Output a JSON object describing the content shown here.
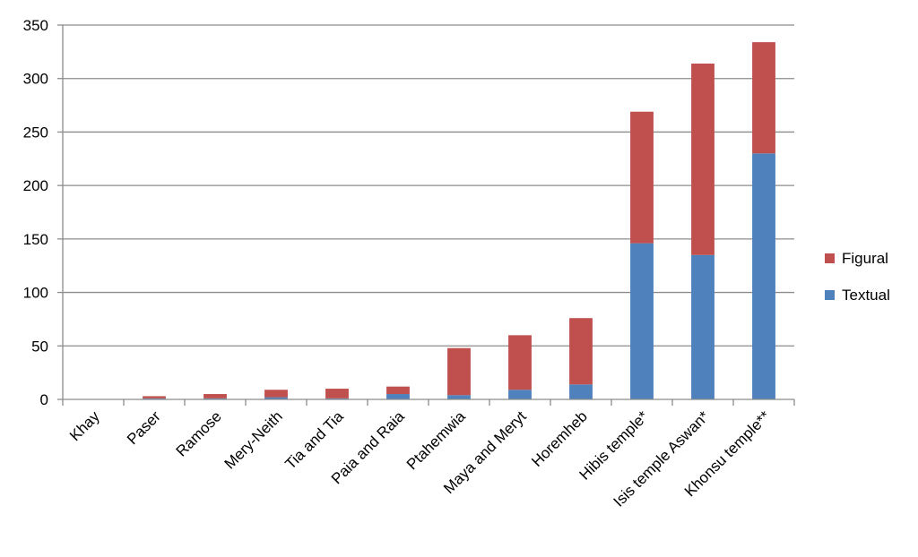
{
  "chart_data": {
    "type": "bar",
    "stacked": true,
    "categories": [
      "Khay",
      "Paser",
      "Ramose",
      "Mery-Neith",
      "Tia and Tia",
      "Paia and Raia",
      "Ptahemwia",
      "Maya and Meryt",
      "Horemheb",
      "Hibis temple*",
      "Isis temple Aswan*",
      "Khonsu temple**"
    ],
    "series": [
      {
        "name": "Textual",
        "color": "#4f81bd",
        "values": [
          0,
          1,
          1,
          2,
          1,
          5,
          4,
          9,
          14,
          146,
          135,
          230
        ]
      },
      {
        "name": "Figural",
        "color": "#c0504d",
        "values": [
          0,
          2,
          4,
          7,
          9,
          7,
          44,
          51,
          62,
          123,
          179,
          104
        ]
      }
    ],
    "ylim": [
      0,
      350
    ],
    "yticks": [
      0,
      50,
      100,
      150,
      200,
      250,
      300,
      350
    ],
    "grid": true,
    "legend_position": "right",
    "legend_order": [
      "Figural",
      "Textual"
    ]
  }
}
